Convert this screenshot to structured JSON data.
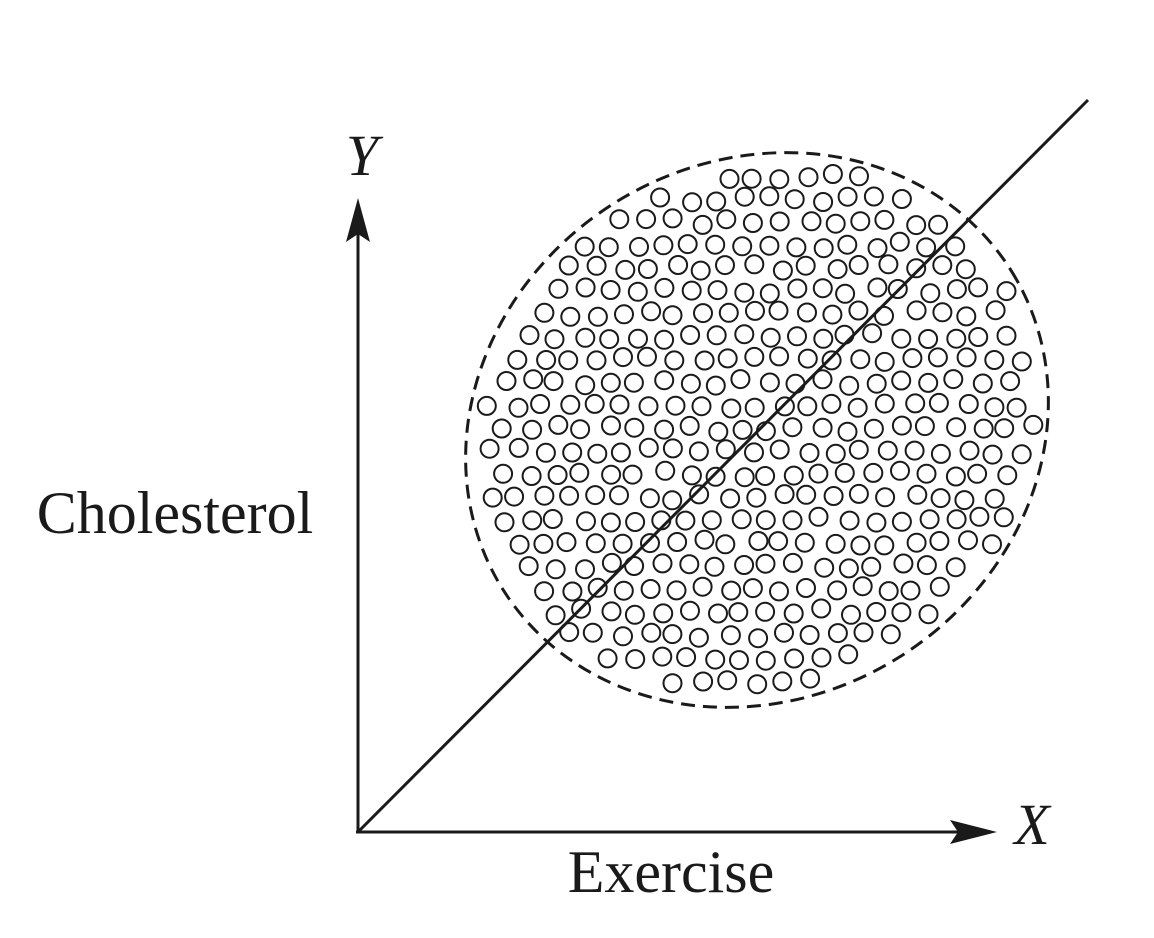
{
  "axes": {
    "x_symbol": "X",
    "y_symbol": "Y",
    "x_label": "Exercise",
    "y_label": "Cholesterol"
  },
  "colors": {
    "stroke": "#1a1a1a",
    "background": "#ffffff"
  },
  "elements": {
    "trend_line": "straight line rising from the origin through the data cloud",
    "boundary": "dashed ellipse enclosing the points",
    "points": "small open circles"
  }
}
